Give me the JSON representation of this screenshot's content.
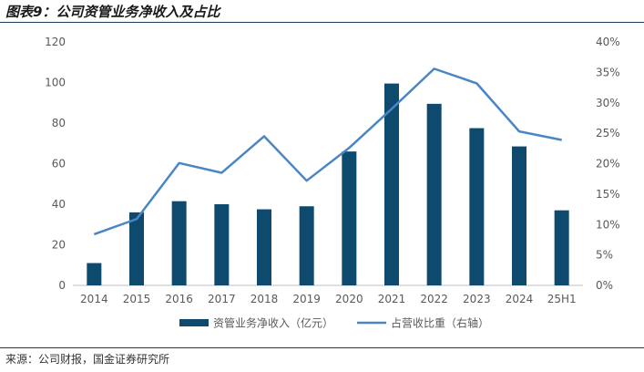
{
  "header": {
    "title": "图表9：公司资管业务净收入及占比"
  },
  "footer": {
    "source": "来源：公司财报，国金证券研究所"
  },
  "colors": {
    "bar": "#0e4a6e",
    "line": "#4a86c5",
    "rule": "#1f3b5a"
  },
  "chart_data": {
    "type": "bar+line",
    "categories": [
      "2014",
      "2015",
      "2016",
      "2017",
      "2018",
      "2019",
      "2020",
      "2021",
      "2022",
      "2023",
      "2024",
      "25H1"
    ],
    "series": [
      {
        "name": "资管业务净收入（亿元）",
        "type": "bar",
        "axis": "left",
        "values": [
          11,
          36,
          41.5,
          40,
          37.5,
          39,
          66,
          99.5,
          89.5,
          77.5,
          68.5,
          37
        ]
      },
      {
        "name": "占营收比重（右轴）",
        "type": "line",
        "axis": "right",
        "values": [
          8.4,
          10.9,
          20.1,
          18.5,
          24.5,
          17.2,
          22.6,
          29.0,
          35.6,
          33.2,
          25.3,
          23.9
        ]
      }
    ],
    "y_left": {
      "min": 0,
      "max": 120,
      "ticks": [
        "0",
        "20",
        "40",
        "60",
        "80",
        "100",
        "120"
      ]
    },
    "y_right": {
      "min": 0,
      "max": 40,
      "ticks": [
        "0%",
        "5%",
        "10%",
        "15%",
        "20%",
        "25%",
        "30%",
        "35%",
        "40%"
      ]
    },
    "legend": {
      "position": "bottom"
    }
  }
}
